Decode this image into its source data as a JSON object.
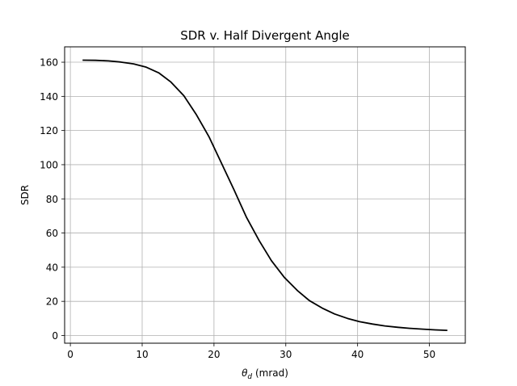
{
  "chart_data": {
    "type": "line",
    "title": "SDR v. Half Divergent Angle",
    "xlabel_symbol": "θ",
    "xlabel_subscript": "d",
    "xlabel_unit": " (mrad)",
    "ylabel": "SDR",
    "xlim": [
      -0.8,
      55
    ],
    "ylim": [
      -4.5,
      169
    ],
    "xticks": [
      0,
      10,
      20,
      30,
      40,
      50
    ],
    "yticks": [
      0,
      20,
      40,
      60,
      80,
      100,
      120,
      140,
      160
    ],
    "grid": true,
    "series": [
      {
        "color": "#000000",
        "x": [
          1.7,
          3.5,
          5.3,
          7.0,
          8.8,
          10.5,
          12.3,
          14.0,
          15.8,
          17.5,
          19.3,
          21.0,
          22.8,
          24.5,
          26.3,
          28.0,
          29.8,
          31.6,
          33.3,
          35.1,
          36.8,
          38.6,
          40.3,
          42.1,
          43.8,
          45.6,
          47.3,
          49.1,
          50.8,
          52.5
        ],
        "y": [
          161.2,
          161.1,
          160.8,
          160.1,
          159.0,
          157.2,
          153.8,
          148.4,
          140.4,
          129.6,
          116.4,
          101.3,
          85.2,
          69.4,
          55.5,
          43.8,
          34.0,
          26.4,
          20.4,
          16.0,
          12.6,
          10.0,
          8.1,
          6.7,
          5.6,
          4.8,
          4.2,
          3.7,
          3.3,
          3.0
        ]
      }
    ]
  }
}
